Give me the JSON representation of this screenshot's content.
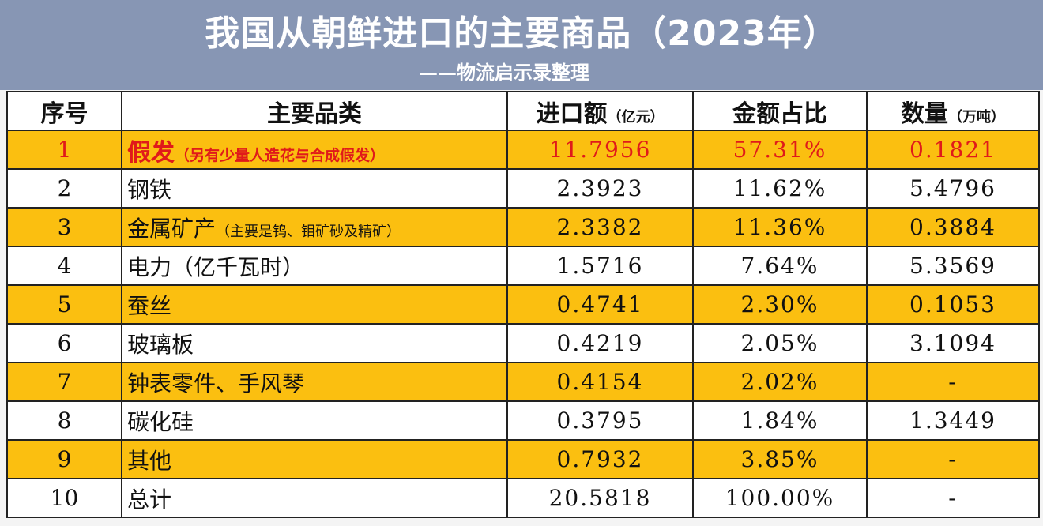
{
  "title": "我国从朝鲜进口的主要商品（2023年）",
  "subtitle": "——物流启示录整理",
  "columns": {
    "index": "序号",
    "category": "主要品类",
    "amount": "进口额",
    "amount_unit": "（亿元）",
    "share": "金额占比",
    "qty": "数量",
    "qty_unit": "（万吨）"
  },
  "rows": [
    {
      "index": "1",
      "name": "假发",
      "note": "（另有少量人造花与合成假发）",
      "amount": "11.7956",
      "share": "57.31%",
      "qty": "0.1821"
    },
    {
      "index": "2",
      "name": "钢铁",
      "note": "",
      "amount": "2.3923",
      "share": "11.62%",
      "qty": "5.4796"
    },
    {
      "index": "3",
      "name": "金属矿产",
      "note": "（主要是钨、钼矿砂及精矿）",
      "amount": "2.3382",
      "share": "11.36%",
      "qty": "0.3884"
    },
    {
      "index": "4",
      "name": "电力（亿千瓦时）",
      "note": "",
      "amount": "1.5716",
      "share": "7.64%",
      "qty": "5.3569"
    },
    {
      "index": "5",
      "name": "蚕丝",
      "note": "",
      "amount": "0.4741",
      "share": "2.30%",
      "qty": "0.1053"
    },
    {
      "index": "6",
      "name": "玻璃板",
      "note": "",
      "amount": "0.4219",
      "share": "2.05%",
      "qty": "3.1094"
    },
    {
      "index": "7",
      "name": "钟表零件、手风琴",
      "note": "",
      "amount": "0.4154",
      "share": "2.02%",
      "qty": "-"
    },
    {
      "index": "8",
      "name": "碳化硅",
      "note": "",
      "amount": "0.3795",
      "share": "1.84%",
      "qty": "1.3449"
    },
    {
      "index": "9",
      "name": "其他",
      "note": "",
      "amount": "0.7932",
      "share": "3.85%",
      "qty": "-"
    },
    {
      "index": "10",
      "name": "总计",
      "note": "",
      "amount": "20.5818",
      "share": "100.00%",
      "qty": "-"
    }
  ],
  "colors": {
    "header_bg": "#8796b4",
    "highlight_row": "#fbbf10",
    "highlight_text": "#e01a1a"
  }
}
